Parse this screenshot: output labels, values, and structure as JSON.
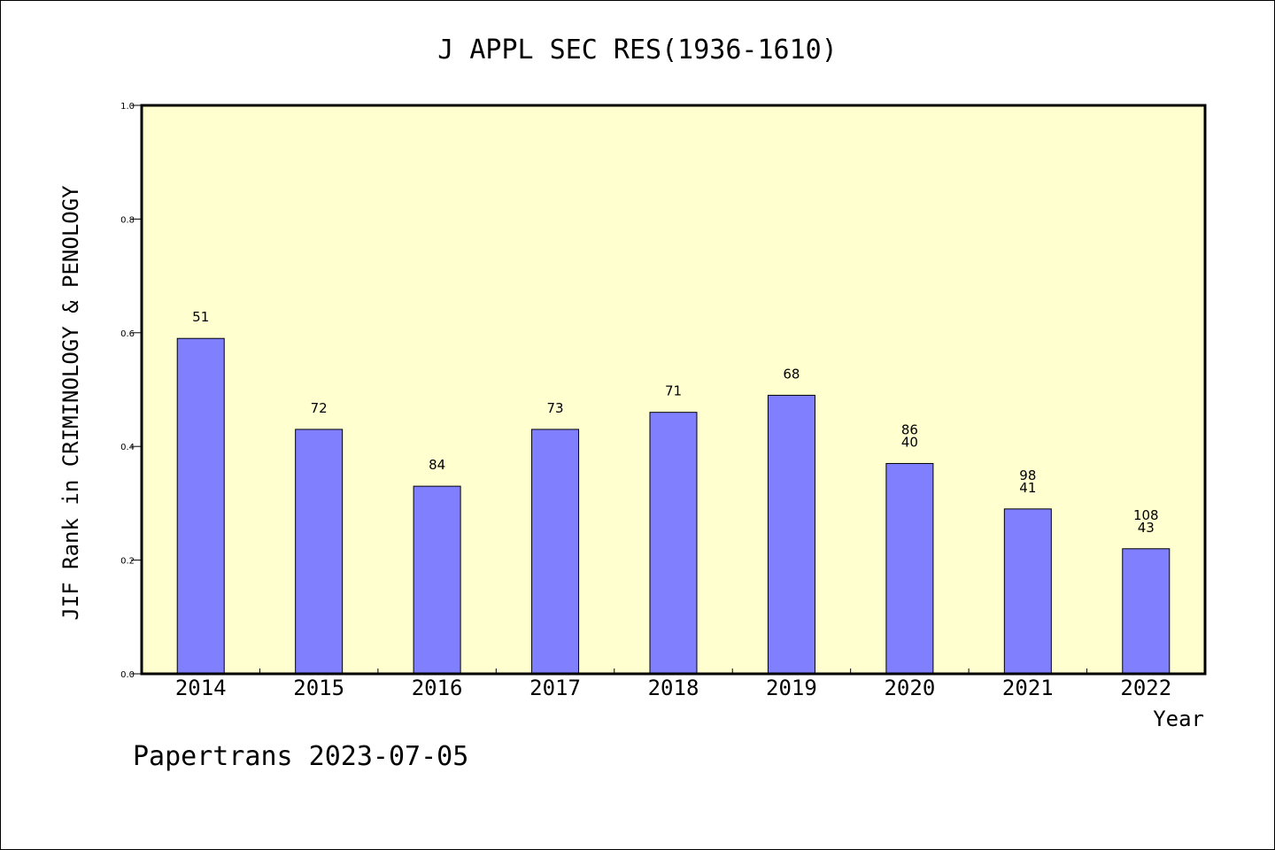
{
  "chart_data": {
    "type": "bar",
    "title": "J APPL SEC RES(1936-1610)",
    "xlabel": "Year",
    "ylabel": "JIF Rank in CRIMINOLOGY & PENOLOGY",
    "ylim": [
      0,
      1.0
    ],
    "yticks": [
      "0.0",
      "0.2",
      "0.4",
      "0.6",
      "0.8",
      "1.0"
    ],
    "categories": [
      "2014",
      "2015",
      "2016",
      "2017",
      "2018",
      "2019",
      "2020",
      "2021",
      "2022"
    ],
    "values": [
      0.59,
      0.43,
      0.33,
      0.43,
      0.46,
      0.49,
      0.37,
      0.29,
      0.22
    ],
    "labels": [
      [
        "51"
      ],
      [
        "72"
      ],
      [
        "84"
      ],
      [
        "73"
      ],
      [
        "71"
      ],
      [
        "68"
      ],
      [
        "86",
        "40"
      ],
      [
        "98",
        "41"
      ],
      [
        "108",
        "43"
      ]
    ],
    "plot_background": "#ffffd0",
    "bar_color": "#8080ff",
    "grid": false
  },
  "footer": "Papertrans 2023-07-05"
}
